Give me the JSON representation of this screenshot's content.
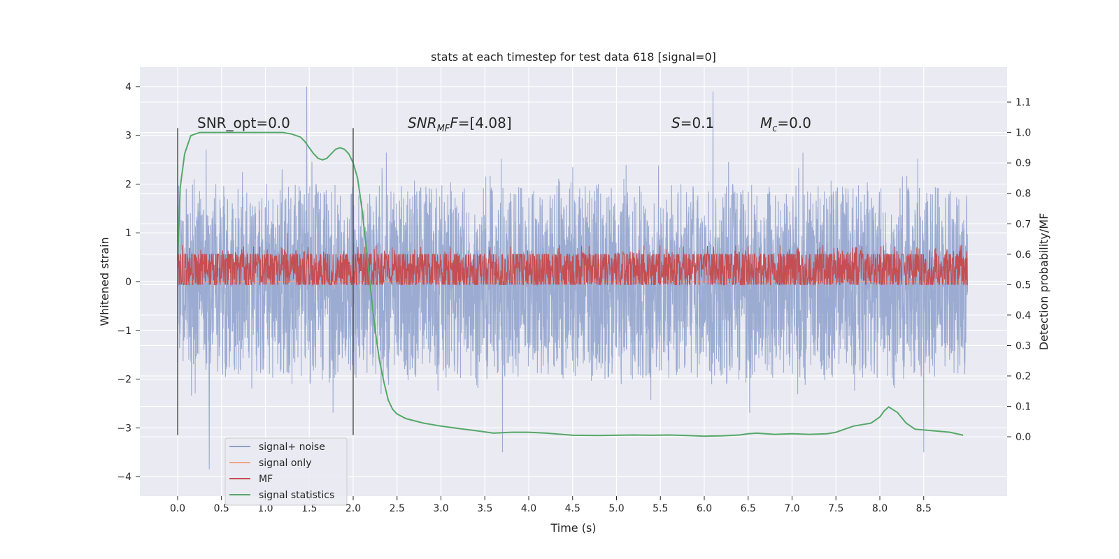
{
  "chart_data": {
    "type": "line",
    "title": "stats at each timestep for test data 618 [signal=0]",
    "xlabel": "Time (s)",
    "ylabel": "Whitened strain",
    "y2label": "Detection probability/MF",
    "xlim": [
      -0.43,
      9.45
    ],
    "ylim": [
      -4.4,
      4.4
    ],
    "y2lim": [
      -0.195,
      1.215
    ],
    "xticks": [
      0.0,
      0.5,
      1.0,
      1.5,
      2.0,
      2.5,
      3.0,
      3.5,
      4.0,
      4.5,
      5.0,
      5.5,
      6.0,
      6.5,
      7.0,
      7.5,
      8.0,
      8.5
    ],
    "xtick_labels": [
      "0.0",
      "0.5",
      "1.0",
      "1.5",
      "2.0",
      "2.5",
      "3.0",
      "3.5",
      "4.0",
      "4.5",
      "5.0",
      "5.5",
      "6.0",
      "6.5",
      "7.0",
      "7.5",
      "8.0",
      "8.5"
    ],
    "yticks": [
      4,
      3,
      2,
      1,
      0,
      -1,
      -2,
      -3,
      -4
    ],
    "ytick_labels": [
      "4",
      "3",
      "2",
      "1",
      "0",
      "−1",
      "−2",
      "−3",
      "−4"
    ],
    "y2ticks": [
      1.1,
      1.0,
      0.9,
      0.8,
      0.7,
      0.6,
      0.5,
      0.4,
      0.3,
      0.2,
      0.1,
      0.0
    ],
    "y2tick_labels": [
      "1.1",
      "1.0",
      "0.9",
      "0.8",
      "0.7",
      "0.6",
      "0.5",
      "0.4",
      "0.3",
      "0.2",
      "0.1",
      "0.0"
    ],
    "grid": true,
    "legend_position": "lower-left",
    "series": [
      {
        "name": "signal+ noise",
        "color": "#8da0cb",
        "axis": "left",
        "kind": "noise",
        "x_range": [
          0.0,
          9.0
        ],
        "envelope_low": -2.0,
        "envelope_high": 2.0,
        "notable_peaks": [
          {
            "x": 1.47,
            "y": 4.0
          },
          {
            "x": 6.1,
            "y": 3.9
          },
          {
            "x": 0.36,
            "y": -3.85
          },
          {
            "x": 3.7,
            "y": -3.5
          },
          {
            "x": 8.5,
            "y": -3.5
          }
        ]
      },
      {
        "name": "signal only",
        "color": "#f2a582",
        "axis": "left",
        "kind": "flat",
        "x": [
          0.0,
          9.0
        ],
        "y": [
          0.0,
          0.0
        ]
      },
      {
        "name": "MF",
        "color": "#c44e52",
        "axis": "right",
        "kind": "noise",
        "x_range": [
          0.0,
          9.0
        ],
        "envelope_low": 0.5,
        "envelope_high": 0.6,
        "notable_peaks": [
          {
            "x": 1.25,
            "y": 0.67
          },
          {
            "x": 2.0,
            "y": 0.64
          },
          {
            "x": 4.35,
            "y": 0.63
          }
        ]
      },
      {
        "name": "signal statistics",
        "color": "#55a868",
        "axis": "right",
        "kind": "line",
        "x": [
          0.0,
          0.03,
          0.08,
          0.15,
          0.25,
          0.4,
          0.6,
          0.8,
          1.0,
          1.2,
          1.3,
          1.4,
          1.45,
          1.5,
          1.55,
          1.6,
          1.65,
          1.7,
          1.75,
          1.8,
          1.85,
          1.9,
          1.95,
          2.0,
          2.05,
          2.1,
          2.15,
          2.2,
          2.25,
          2.3,
          2.35,
          2.4,
          2.45,
          2.5,
          2.6,
          2.8,
          3.0,
          3.2,
          3.4,
          3.6,
          3.8,
          4.0,
          4.2,
          4.5,
          4.8,
          5.0,
          5.2,
          5.4,
          5.6,
          5.8,
          6.0,
          6.2,
          6.4,
          6.5,
          6.6,
          6.8,
          7.0,
          7.2,
          7.4,
          7.5,
          7.6,
          7.7,
          7.8,
          7.9,
          8.0,
          8.05,
          8.1,
          8.2,
          8.3,
          8.4,
          8.6,
          8.8,
          8.95
        ],
        "y": [
          0.58,
          0.82,
          0.93,
          0.99,
          1.0,
          1.0,
          1.0,
          1.0,
          1.0,
          1.0,
          0.995,
          0.985,
          0.97,
          0.95,
          0.93,
          0.915,
          0.91,
          0.915,
          0.93,
          0.945,
          0.95,
          0.945,
          0.93,
          0.9,
          0.85,
          0.75,
          0.62,
          0.48,
          0.35,
          0.25,
          0.18,
          0.12,
          0.09,
          0.075,
          0.06,
          0.045,
          0.035,
          0.027,
          0.02,
          0.012,
          0.015,
          0.015,
          0.012,
          0.005,
          0.004,
          0.005,
          0.006,
          0.005,
          0.006,
          0.004,
          0.002,
          0.003,
          0.006,
          0.01,
          0.012,
          0.008,
          0.01,
          0.008,
          0.01,
          0.015,
          0.025,
          0.035,
          0.04,
          0.045,
          0.065,
          0.085,
          0.098,
          0.08,
          0.045,
          0.025,
          0.02,
          0.015,
          0.005
        ]
      }
    ],
    "vertical_lines": [
      {
        "x": 0.0,
        "y_from": -3.15,
        "y_to": 3.15,
        "color": "#555555"
      },
      {
        "x": 2.0,
        "y_from": -3.15,
        "y_to": 3.15,
        "color": "#555555"
      }
    ],
    "annotations": [
      {
        "id": "snr-opt",
        "label": "SNR_opt=0.0",
        "x": 0.2,
        "y": 3.15
      },
      {
        "id": "snr-mf",
        "label": "SNR",
        "sub": "MF",
        "value": "=[4.08]",
        "x": 2.6,
        "y": 3.15
      },
      {
        "id": "s-value",
        "label": "S",
        "value": "=0.1",
        "x": 5.6,
        "y": 3.15
      },
      {
        "id": "mc-value",
        "label": "M",
        "sub": "c",
        "value": "=0.0",
        "x": 6.6,
        "y": 3.15
      }
    ]
  }
}
